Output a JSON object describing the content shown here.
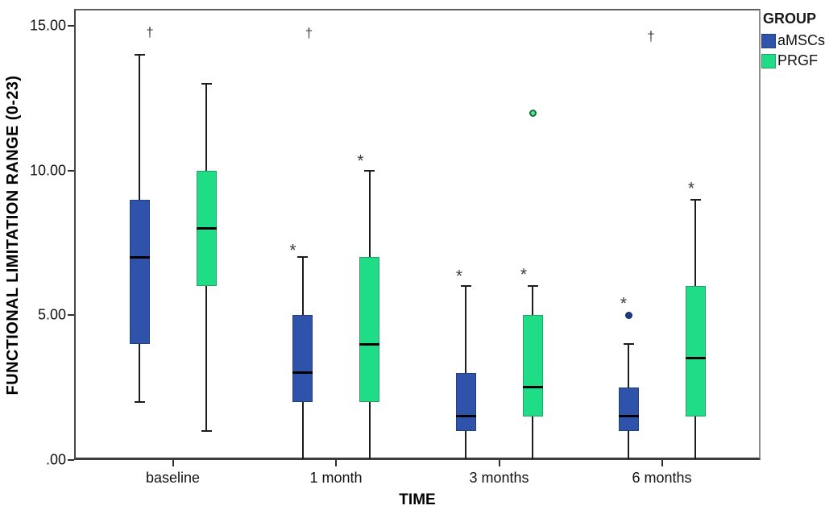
{
  "chart_data": {
    "type": "boxplot",
    "title": "",
    "xlabel": "TIME",
    "ylabel": "FUNCTIONAL LIMITATION RANGE (0-23)",
    "categories": [
      "baseline",
      "1 month",
      "3 months",
      "6 months"
    ],
    "y_ticks": [
      {
        "label": ".00",
        "value": 0
      },
      {
        "label": "5.00",
        "value": 5
      },
      {
        "label": "10.00",
        "value": 10
      },
      {
        "label": "15.00",
        "value": 15
      }
    ],
    "ylim": [
      0,
      15.6
    ],
    "grid": false,
    "legend": {
      "title": "GROUP",
      "position": "top-right-outside"
    },
    "series": [
      {
        "name": "aMSCs",
        "color": "#2F52AA",
        "border_color": "#23407f",
        "boxes": [
          {
            "category": "baseline",
            "min": 2,
            "q1": 4,
            "median": 7,
            "q3": 9,
            "max": 14,
            "outliers": []
          },
          {
            "category": "1 month",
            "min": 0,
            "q1": 2,
            "median": 3,
            "q3": 5,
            "max": 7,
            "outliers": []
          },
          {
            "category": "3 months",
            "min": 0,
            "q1": 1,
            "median": 1.5,
            "q3": 3,
            "max": 6,
            "outliers": []
          },
          {
            "category": "6 months",
            "min": 0,
            "q1": 1,
            "median": 1.5,
            "q3": 2.5,
            "max": 4,
            "outliers": [
              {
                "value": 5,
                "style": "filled"
              }
            ]
          }
        ]
      },
      {
        "name": "PRGF",
        "color": "#1FDC86",
        "border_color": "#2aa169",
        "boxes": [
          {
            "category": "baseline",
            "min": 1,
            "q1": 6,
            "median": 8,
            "q3": 10,
            "max": 13,
            "outliers": []
          },
          {
            "category": "1 month",
            "min": 0,
            "q1": 2,
            "median": 4,
            "q3": 7,
            "max": 10,
            "outliers": []
          },
          {
            "category": "3 months",
            "min": 0,
            "q1": 1.5,
            "median": 2.5,
            "q3": 5,
            "max": 6,
            "outliers": [
              {
                "value": 12,
                "style": "open"
              }
            ]
          },
          {
            "category": "6 months",
            "min": 0,
            "q1": 1.5,
            "median": 3.5,
            "q3": 6,
            "max": 9,
            "outliers": []
          }
        ]
      }
    ],
    "annotations": [
      {
        "symbol": "†",
        "name": "dagger",
        "category_index": 0,
        "series": "aMSCs",
        "y": 14.8,
        "dx": 13
      },
      {
        "symbol": "†",
        "name": "dagger",
        "category_index": 1,
        "series": "aMSCs",
        "y": 14.75,
        "dx": 8
      },
      {
        "symbol": "†",
        "name": "dagger",
        "category_index": 3,
        "series": "aMSCs",
        "y": 14.65,
        "dx": 28
      },
      {
        "symbol": "*",
        "name": "asterisk",
        "category_index": 1,
        "series": "aMSCs",
        "y": 7.35,
        "dx": -12
      },
      {
        "symbol": "*",
        "name": "asterisk",
        "category_index": 1,
        "series": "PRGF",
        "y": 10.45,
        "dx": -11
      },
      {
        "symbol": "*",
        "name": "asterisk",
        "category_index": 2,
        "series": "aMSCs",
        "y": 6.45,
        "dx": -8
      },
      {
        "symbol": "*",
        "name": "asterisk",
        "category_index": 2,
        "series": "PRGF",
        "y": 6.5,
        "dx": -11
      },
      {
        "symbol": "*",
        "name": "asterisk",
        "category_index": 3,
        "series": "aMSCs",
        "y": 5.5,
        "dx": -6
      },
      {
        "symbol": "*",
        "name": "asterisk",
        "category_index": 3,
        "series": "PRGF",
        "y": 9.5,
        "dx": -5
      }
    ]
  }
}
